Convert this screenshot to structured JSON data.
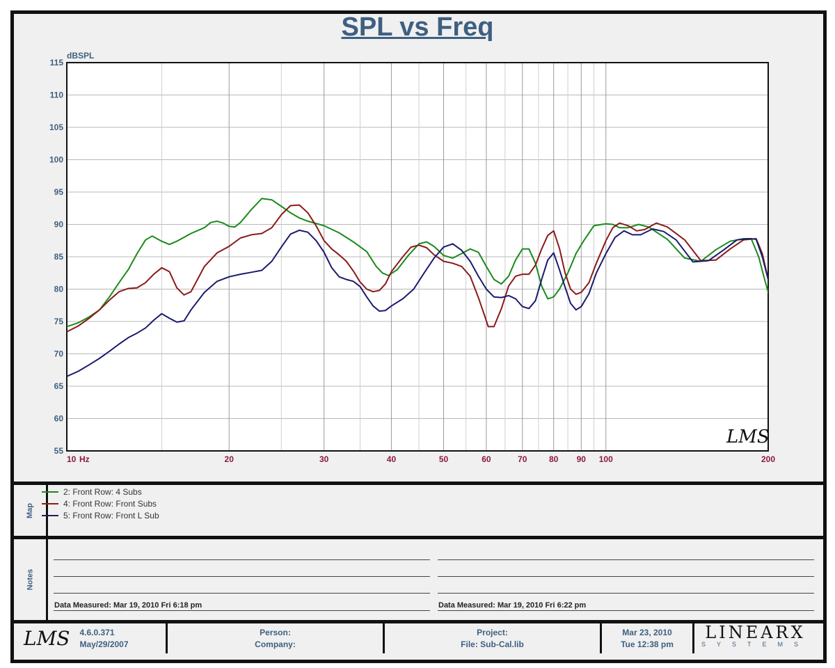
{
  "chart_data": {
    "type": "line",
    "title": "SPL vs Freq",
    "ylabel": "dBSPL",
    "xunit": "Hz",
    "xscale": "log",
    "xlim": [
      10,
      200
    ],
    "ylim": [
      55,
      115
    ],
    "yticks": [
      "115",
      "110",
      "105",
      "100",
      "95",
      "90",
      "85",
      "80",
      "75",
      "70",
      "65",
      "60",
      "55"
    ],
    "xticks": [
      {
        "value": 10,
        "label": "10"
      },
      {
        "value": 20,
        "label": "20"
      },
      {
        "value": 30,
        "label": "30"
      },
      {
        "value": 40,
        "label": "40"
      },
      {
        "value": 50,
        "label": "50"
      },
      {
        "value": 60,
        "label": "60"
      },
      {
        "value": 70,
        "label": "70"
      },
      {
        "value": 80,
        "label": "80"
      },
      {
        "value": 90,
        "label": "90"
      },
      {
        "value": 100,
        "label": "100"
      },
      {
        "value": 200,
        "label": "200"
      }
    ],
    "grid": true,
    "watermark": "LMS",
    "series": [
      {
        "name": "2: Front Row: 4 Subs",
        "color": "#1a8a1a",
        "points": [
          [
            10,
            74.2
          ],
          [
            10.5,
            74.8
          ],
          [
            11,
            75.7
          ],
          [
            11.5,
            76.8
          ],
          [
            12,
            78.8
          ],
          [
            12.5,
            81
          ],
          [
            13,
            83
          ],
          [
            13.5,
            85.5
          ],
          [
            14,
            87.6
          ],
          [
            14.4,
            88.2
          ],
          [
            15,
            87.4
          ],
          [
            15.5,
            86.9
          ],
          [
            16,
            87.4
          ],
          [
            17,
            88.6
          ],
          [
            18,
            89.5
          ],
          [
            18.5,
            90.3
          ],
          [
            19,
            90.5
          ],
          [
            19.5,
            90.2
          ],
          [
            20,
            89.7
          ],
          [
            20.5,
            89.6
          ],
          [
            21,
            90.3
          ],
          [
            22,
            92.3
          ],
          [
            23,
            94
          ],
          [
            24,
            93.8
          ],
          [
            25,
            92.8
          ],
          [
            26,
            91.8
          ],
          [
            27,
            91
          ],
          [
            28,
            90.5
          ],
          [
            30,
            89.8
          ],
          [
            32,
            88.7
          ],
          [
            34,
            87.3
          ],
          [
            36,
            85.8
          ],
          [
            37.5,
            83.5
          ],
          [
            38.5,
            82.5
          ],
          [
            39.5,
            82.1
          ],
          [
            41,
            83
          ],
          [
            43,
            85.2
          ],
          [
            45,
            87
          ],
          [
            46.5,
            87.3
          ],
          [
            48,
            86.6
          ],
          [
            50,
            85.2
          ],
          [
            52,
            84.8
          ],
          [
            54,
            85.5
          ],
          [
            56,
            86.2
          ],
          [
            58,
            85.7
          ],
          [
            60,
            83.5
          ],
          [
            62,
            81.5
          ],
          [
            64,
            80.8
          ],
          [
            66,
            82
          ],
          [
            68,
            84.5
          ],
          [
            70,
            86.2
          ],
          [
            72,
            86.2
          ],
          [
            74,
            84
          ],
          [
            76,
            80.5
          ],
          [
            78,
            78.5
          ],
          [
            80,
            78.8
          ],
          [
            82,
            80
          ],
          [
            85,
            82.5
          ],
          [
            88,
            85.5
          ],
          [
            91,
            87.5
          ],
          [
            95,
            89.8
          ],
          [
            100,
            90.1
          ],
          [
            103,
            90
          ],
          [
            106,
            89.5
          ],
          [
            110,
            89.5
          ],
          [
            115,
            90
          ],
          [
            120,
            89.6
          ],
          [
            130,
            87.7
          ],
          [
            140,
            84.8
          ],
          [
            150,
            84.3
          ],
          [
            160,
            86.1
          ],
          [
            170,
            87.4
          ],
          [
            180,
            87.8
          ],
          [
            186,
            87.8
          ],
          [
            192,
            85
          ],
          [
            197,
            81.5
          ],
          [
            200,
            79.5
          ],
          [
            203,
            78.9
          ],
          [
            207,
            79.2
          ],
          [
            212,
            80.6
          ]
        ]
      },
      {
        "name": "4: Front Row: Front Subs",
        "color": "#8a1a1a",
        "points": [
          [
            10,
            73.4
          ],
          [
            10.5,
            74.3
          ],
          [
            11,
            75.5
          ],
          [
            11.5,
            76.8
          ],
          [
            12,
            78.3
          ],
          [
            12.5,
            79.6
          ],
          [
            13,
            80.1
          ],
          [
            13.5,
            80.2
          ],
          [
            14,
            81
          ],
          [
            14.5,
            82.3
          ],
          [
            15,
            83.3
          ],
          [
            15.5,
            82.7
          ],
          [
            16,
            80.2
          ],
          [
            16.5,
            79.1
          ],
          [
            17,
            79.6
          ],
          [
            18,
            83.5
          ],
          [
            19,
            85.6
          ],
          [
            20,
            86.6
          ],
          [
            21,
            87.9
          ],
          [
            22,
            88.4
          ],
          [
            23,
            88.6
          ],
          [
            24,
            89.5
          ],
          [
            25,
            91.5
          ],
          [
            26,
            92.9
          ],
          [
            27,
            93
          ],
          [
            28,
            91.8
          ],
          [
            29,
            89.8
          ],
          [
            30,
            87.5
          ],
          [
            31,
            86.2
          ],
          [
            32,
            85.3
          ],
          [
            33,
            84.3
          ],
          [
            34,
            82.8
          ],
          [
            35,
            81.1
          ],
          [
            36,
            80
          ],
          [
            37,
            79.6
          ],
          [
            38,
            79.8
          ],
          [
            39,
            80.8
          ],
          [
            40,
            82.7
          ],
          [
            42,
            85
          ],
          [
            43.5,
            86.5
          ],
          [
            45,
            86.8
          ],
          [
            46.5,
            86.4
          ],
          [
            48,
            85.3
          ],
          [
            50,
            84.3
          ],
          [
            52,
            84
          ],
          [
            54,
            83.5
          ],
          [
            56,
            82
          ],
          [
            58,
            78.7
          ],
          [
            59.5,
            76
          ],
          [
            60.5,
            74.2
          ],
          [
            62,
            74.2
          ],
          [
            64,
            77
          ],
          [
            66,
            80.5
          ],
          [
            68,
            82
          ],
          [
            70,
            82.3
          ],
          [
            72,
            82.3
          ],
          [
            74,
            83.7
          ],
          [
            76,
            86.2
          ],
          [
            78,
            88.3
          ],
          [
            80,
            89
          ],
          [
            82,
            86.3
          ],
          [
            84,
            82.5
          ],
          [
            86,
            80
          ],
          [
            88,
            79.2
          ],
          [
            90,
            79.5
          ],
          [
            93,
            81
          ],
          [
            96,
            84
          ],
          [
            100,
            87.5
          ],
          [
            103,
            89.5
          ],
          [
            106,
            90.2
          ],
          [
            110,
            89.8
          ],
          [
            114,
            89
          ],
          [
            118,
            89.2
          ],
          [
            124,
            90.2
          ],
          [
            130,
            89.6
          ],
          [
            140,
            87.6
          ],
          [
            150,
            84.4
          ],
          [
            160,
            84.5
          ],
          [
            170,
            86.2
          ],
          [
            180,
            87.6
          ],
          [
            190,
            87.8
          ],
          [
            195,
            85.5
          ],
          [
            200,
            81.5
          ],
          [
            204,
            79
          ],
          [
            208,
            79.2
          ],
          [
            212,
            80.8
          ]
        ]
      },
      {
        "name": "5: Front Row: Front L Sub",
        "color": "#1a1a6e",
        "points": [
          [
            10,
            66.5
          ],
          [
            10.5,
            67.3
          ],
          [
            11,
            68.3
          ],
          [
            11.5,
            69.3
          ],
          [
            12,
            70.4
          ],
          [
            12.5,
            71.5
          ],
          [
            13,
            72.5
          ],
          [
            13.5,
            73.2
          ],
          [
            14,
            74
          ],
          [
            14.5,
            75.2
          ],
          [
            15,
            76.2
          ],
          [
            15.5,
            75.5
          ],
          [
            16,
            74.9
          ],
          [
            16.5,
            75.1
          ],
          [
            17,
            76.8
          ],
          [
            18,
            79.5
          ],
          [
            19,
            81.2
          ],
          [
            20,
            81.9
          ],
          [
            21,
            82.3
          ],
          [
            22,
            82.6
          ],
          [
            23,
            82.9
          ],
          [
            24,
            84.3
          ],
          [
            25,
            86.5
          ],
          [
            26,
            88.5
          ],
          [
            27,
            89.1
          ],
          [
            28,
            88.8
          ],
          [
            29,
            87.5
          ],
          [
            30,
            85.7
          ],
          [
            31,
            83.3
          ],
          [
            32,
            81.9
          ],
          [
            33,
            81.5
          ],
          [
            34,
            81.2
          ],
          [
            35,
            80.4
          ],
          [
            36,
            78.8
          ],
          [
            37,
            77.4
          ],
          [
            38,
            76.6
          ],
          [
            39,
            76.7
          ],
          [
            40,
            77.4
          ],
          [
            42,
            78.5
          ],
          [
            44,
            80
          ],
          [
            46,
            82.5
          ],
          [
            48,
            84.8
          ],
          [
            50,
            86.5
          ],
          [
            52,
            87
          ],
          [
            54,
            86
          ],
          [
            56,
            84.3
          ],
          [
            58,
            82
          ],
          [
            60,
            80
          ],
          [
            62,
            78.8
          ],
          [
            64,
            78.7
          ],
          [
            66,
            79
          ],
          [
            68,
            78.5
          ],
          [
            70,
            77.3
          ],
          [
            72,
            77
          ],
          [
            74,
            78.2
          ],
          [
            76,
            81.5
          ],
          [
            78,
            84.5
          ],
          [
            80,
            85.6
          ],
          [
            82,
            83
          ],
          [
            84,
            80.3
          ],
          [
            86,
            77.8
          ],
          [
            88,
            76.8
          ],
          [
            90,
            77.3
          ],
          [
            93,
            79.3
          ],
          [
            96,
            82.5
          ],
          [
            100,
            85.5
          ],
          [
            104,
            88
          ],
          [
            108,
            89
          ],
          [
            112,
            88.4
          ],
          [
            116,
            88.4
          ],
          [
            122,
            89.3
          ],
          [
            128,
            88.9
          ],
          [
            135,
            87.6
          ],
          [
            145,
            84.2
          ],
          [
            155,
            84.4
          ],
          [
            165,
            86
          ],
          [
            175,
            87.6
          ],
          [
            185,
            87.8
          ],
          [
            190,
            87.7
          ],
          [
            195,
            85
          ],
          [
            200,
            81.5
          ],
          [
            204,
            79.2
          ],
          [
            208,
            79.3
          ],
          [
            212,
            80.8
          ]
        ]
      }
    ]
  },
  "panels": {
    "map_label": "Map",
    "notes_label": "Notes"
  },
  "notes": {
    "left": "Data Measured: Mar 19, 2010  Fri  6:18 pm",
    "right": "Data Measured: Mar 19, 2010  Fri  6:22 pm"
  },
  "footer": {
    "logo": "LMS",
    "version": "4.6.0.371",
    "version_date": "May/29/2007",
    "person_label": "Person:",
    "company_label": "Company:",
    "project_label": "Project:",
    "file_label": "File: Sub-Cal.lib",
    "date": "Mar 23, 2010",
    "time": "Tue 12:38 pm",
    "brand": "LINEARX",
    "brand_sub": "SYSTEMS"
  }
}
